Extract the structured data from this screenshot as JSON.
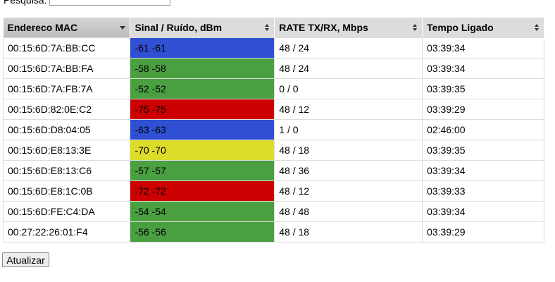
{
  "search": {
    "label": "Pesquisa:"
  },
  "table": {
    "headers": [
      "Endereco MAC",
      "Sinal / Ruído, dBm",
      "RATE TX/RX, Mbps",
      "Tempo Ligado"
    ],
    "rows": [
      [
        "00:15:6D:7A:BB:CC",
        "-61 -61",
        "48 / 24",
        "03:39:34"
      ],
      [
        "00:15:6D:7A:BB:FA",
        "-58 -58",
        "48 / 24",
        "03:39:34"
      ],
      [
        "00:15:6D:7A:FB:7A",
        "-52 -52",
        "0 / 0",
        "03:39:35"
      ],
      [
        "00:15:6D:82:0E:C2",
        "-75 -75",
        "48 / 12",
        "03:39:29"
      ],
      [
        "00:15:6D:D8:04:05",
        "-63 -63",
        "1 / 0",
        "02:46:00"
      ],
      [
        "00:15:6D:E8:13:3E",
        "-70 -70",
        "48 / 18",
        "03:39:35"
      ],
      [
        "00:15:6D:E8:13:C6",
        "-57 -57",
        "48 / 36",
        "03:39:34"
      ],
      [
        "00:15:6D:E8:1C:0B",
        "-72 -72",
        "48 / 12",
        "03:39:33"
      ],
      [
        "00:15:6D:FE:C4:DA",
        "-54 -54",
        "48 / 48",
        "03:39:34"
      ],
      [
        "00:27:22:26:01:F4",
        "-56 -56",
        "48 / 18",
        "03:39:29"
      ]
    ],
    "signal_colors": [
      "#2f50d2",
      "#4a9f40",
      "#4a9f40",
      "#cc0000",
      "#2f50d2",
      "#dcdc2a",
      "#4a9f40",
      "#cc0000",
      "#4a9f40",
      "#4a9f40"
    ]
  },
  "button": {
    "label": "Atualizar"
  }
}
